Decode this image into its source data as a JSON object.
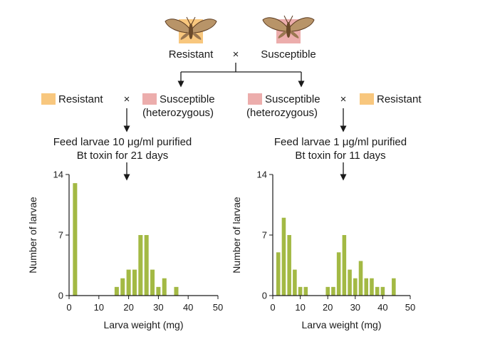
{
  "colors": {
    "resistant": "#f8c77e",
    "susceptible": "#ecadac",
    "bar": "#a3b944",
    "moth_body": "#6b4a2a",
    "moth_wing": "#b89468"
  },
  "top_cross": {
    "left_label": "Resistant",
    "cross_symbol": "×",
    "right_label": "Susceptible"
  },
  "left_cross": {
    "parent_a": "Resistant",
    "cross_symbol": "×",
    "parent_b_line1": "Susceptible",
    "parent_b_line2": "(heterozygous)",
    "treatment_line1": "Feed larvae 10 μg/ml purified",
    "treatment_line2": "Bt toxin for 21 days"
  },
  "right_cross": {
    "parent_a_line1": "Susceptible",
    "parent_a_line2": "(heterozygous)",
    "cross_symbol": "×",
    "parent_b": "Resistant",
    "treatment_line1": "Feed larvae 1 μg/ml purified",
    "treatment_line2": "Bt toxin for 11 days"
  },
  "chart_data": [
    {
      "type": "bar",
      "title": "",
      "xlabel": "Larva weight (mg)",
      "ylabel": "Number of larvae",
      "xlim": [
        0,
        50
      ],
      "ylim": [
        0,
        14
      ],
      "xticks": [
        0,
        10,
        20,
        30,
        40,
        50
      ],
      "yticks": [
        0,
        7,
        14
      ],
      "x": [
        2,
        16,
        18,
        20,
        22,
        24,
        26,
        28,
        30,
        32,
        36
      ],
      "values": [
        13,
        1,
        2,
        3,
        3,
        7,
        7,
        3,
        1,
        2,
        1
      ]
    },
    {
      "type": "bar",
      "title": "",
      "xlabel": "Larva weight (mg)",
      "ylabel": "Number of larvae",
      "xlim": [
        0,
        50
      ],
      "ylim": [
        0,
        14
      ],
      "xticks": [
        0,
        10,
        20,
        30,
        40,
        50
      ],
      "yticks": [
        0,
        7,
        14
      ],
      "x": [
        2,
        4,
        6,
        8,
        10,
        12,
        20,
        22,
        24,
        26,
        28,
        30,
        32,
        34,
        36,
        38,
        40,
        44
      ],
      "values": [
        5,
        9,
        7,
        3,
        1,
        1,
        1,
        1,
        5,
        7,
        3,
        2,
        4,
        2,
        2,
        1,
        1,
        2
      ]
    }
  ]
}
